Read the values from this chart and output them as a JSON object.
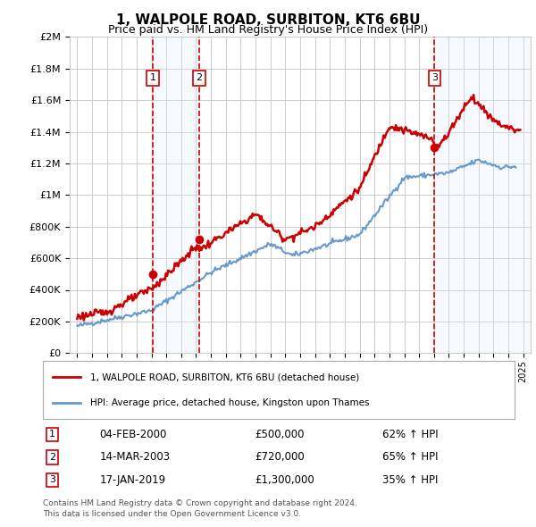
{
  "title": "1, WALPOLE ROAD, SURBITON, KT6 6BU",
  "subtitle": "Price paid vs. HM Land Registry's House Price Index (HPI)",
  "legend_line1": "1, WALPOLE ROAD, SURBITON, KT6 6BU (detached house)",
  "legend_line2": "HPI: Average price, detached house, Kingston upon Thames",
  "footer1": "Contains HM Land Registry data © Crown copyright and database right 2024.",
  "footer2": "This data is licensed under the Open Government Licence v3.0.",
  "sales": [
    {
      "label": "1",
      "date": "04-FEB-2000",
      "price": 500000,
      "hpi_pct": "62% ↑ HPI",
      "x_year": 2000.09
    },
    {
      "label": "2",
      "date": "14-MAR-2003",
      "price": 720000,
      "hpi_pct": "65% ↑ HPI",
      "x_year": 2003.2
    },
    {
      "label": "3",
      "date": "17-JAN-2019",
      "price": 1300000,
      "hpi_pct": "35% ↑ HPI",
      "x_year": 2019.04
    }
  ],
  "sale_marker_color": "#cc0000",
  "sale_line_color": "#cc0000",
  "hpi_line_color": "#6699cc",
  "shading_color": "#ddeeff",
  "vline_color": "#cc0000",
  "grid_color": "#cccccc",
  "background_color": "#ffffff",
  "ylim": [
    0,
    2000000
  ],
  "xlim_start": 1994.5,
  "xlim_end": 2025.5
}
